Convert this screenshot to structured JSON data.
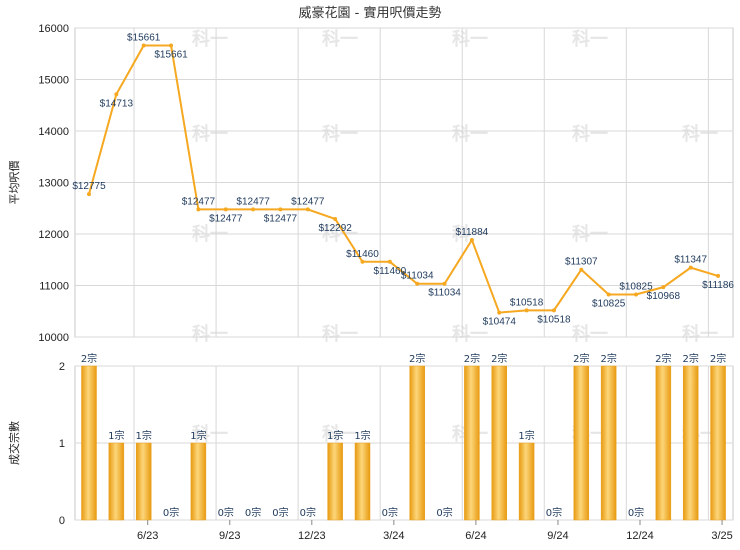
{
  "chart_data": [
    {
      "type": "line",
      "title": "威豪花園 - 實用呎價走勢",
      "ylabel": "平均呎價",
      "ylim": [
        10000,
        16000
      ],
      "yticks": [
        10000,
        11000,
        12000,
        13000,
        14000,
        15000,
        16000
      ],
      "color": "#f5a820",
      "points": [
        {
          "i": 0,
          "y": 12775,
          "label": "$12775"
        },
        {
          "i": 1,
          "y": 14713,
          "label": "$14713"
        },
        {
          "i": 2,
          "y": 15661,
          "label": "$15661"
        },
        {
          "i": 3,
          "y": 15661,
          "label": "$15661"
        },
        {
          "i": 4,
          "y": 12477,
          "label": "$12477"
        },
        {
          "i": 5,
          "y": 12477,
          "label": "$12477"
        },
        {
          "i": 6,
          "y": 12477,
          "label": "$12477"
        },
        {
          "i": 7,
          "y": 12477,
          "label": "$12477"
        },
        {
          "i": 8,
          "y": 12477,
          "label": "$12477"
        },
        {
          "i": 9,
          "y": 12292,
          "label": "$12292"
        },
        {
          "i": 10,
          "y": 11460,
          "label": "$11460"
        },
        {
          "i": 11,
          "y": 11460,
          "label": "$11460"
        },
        {
          "i": 12,
          "y": 11034,
          "label": "$11034"
        },
        {
          "i": 13,
          "y": 11034,
          "label": "$11034"
        },
        {
          "i": 14,
          "y": 11884,
          "label": "$11884"
        },
        {
          "i": 15,
          "y": 10474,
          "label": "$10474"
        },
        {
          "i": 16,
          "y": 10518,
          "label": "$10518"
        },
        {
          "i": 17,
          "y": 10518,
          "label": "$10518"
        },
        {
          "i": 18,
          "y": 11307,
          "label": "$11307"
        },
        {
          "i": 19,
          "y": 10825,
          "label": "$10825"
        },
        {
          "i": 20,
          "y": 10825,
          "label": "$10825"
        },
        {
          "i": 21,
          "y": 10968,
          "label": "$10968"
        },
        {
          "i": 22,
          "y": 11347,
          "label": "$11347"
        },
        {
          "i": 23,
          "y": 11186,
          "label": "$11186"
        }
      ]
    },
    {
      "type": "bar",
      "ylabel": "成交宗數",
      "ylim": [
        0,
        2
      ],
      "yticks": [
        0,
        1,
        2
      ],
      "color": "#f0a810",
      "values": [
        2,
        1,
        1,
        0,
        1,
        0,
        0,
        0,
        0,
        1,
        1,
        0,
        2,
        0,
        2,
        2,
        1,
        0,
        2,
        2,
        0,
        2,
        2,
        2
      ],
      "labels": [
        "2宗",
        "1宗",
        "1宗",
        "0宗",
        "1宗",
        "0宗",
        "0宗",
        "0宗",
        "0宗",
        "1宗",
        "1宗",
        "0宗",
        "2宗",
        "0宗",
        "2宗",
        "2宗",
        "1宗",
        "0宗",
        "2宗",
        "2宗",
        "0宗",
        "2宗",
        "2宗",
        "2宗"
      ]
    }
  ],
  "x_axis": {
    "tick_labels": [
      {
        "i": 2,
        "text": "6/23"
      },
      {
        "i": 5,
        "text": "9/23"
      },
      {
        "i": 8,
        "text": "12/23"
      },
      {
        "i": 11,
        "text": "3/24"
      },
      {
        "i": 14,
        "text": "6/24"
      },
      {
        "i": 17,
        "text": "9/24"
      },
      {
        "i": 20,
        "text": "12/24"
      },
      {
        "i": 23,
        "text": "3/25"
      }
    ]
  },
  "watermark": "科一",
  "grid": true
}
